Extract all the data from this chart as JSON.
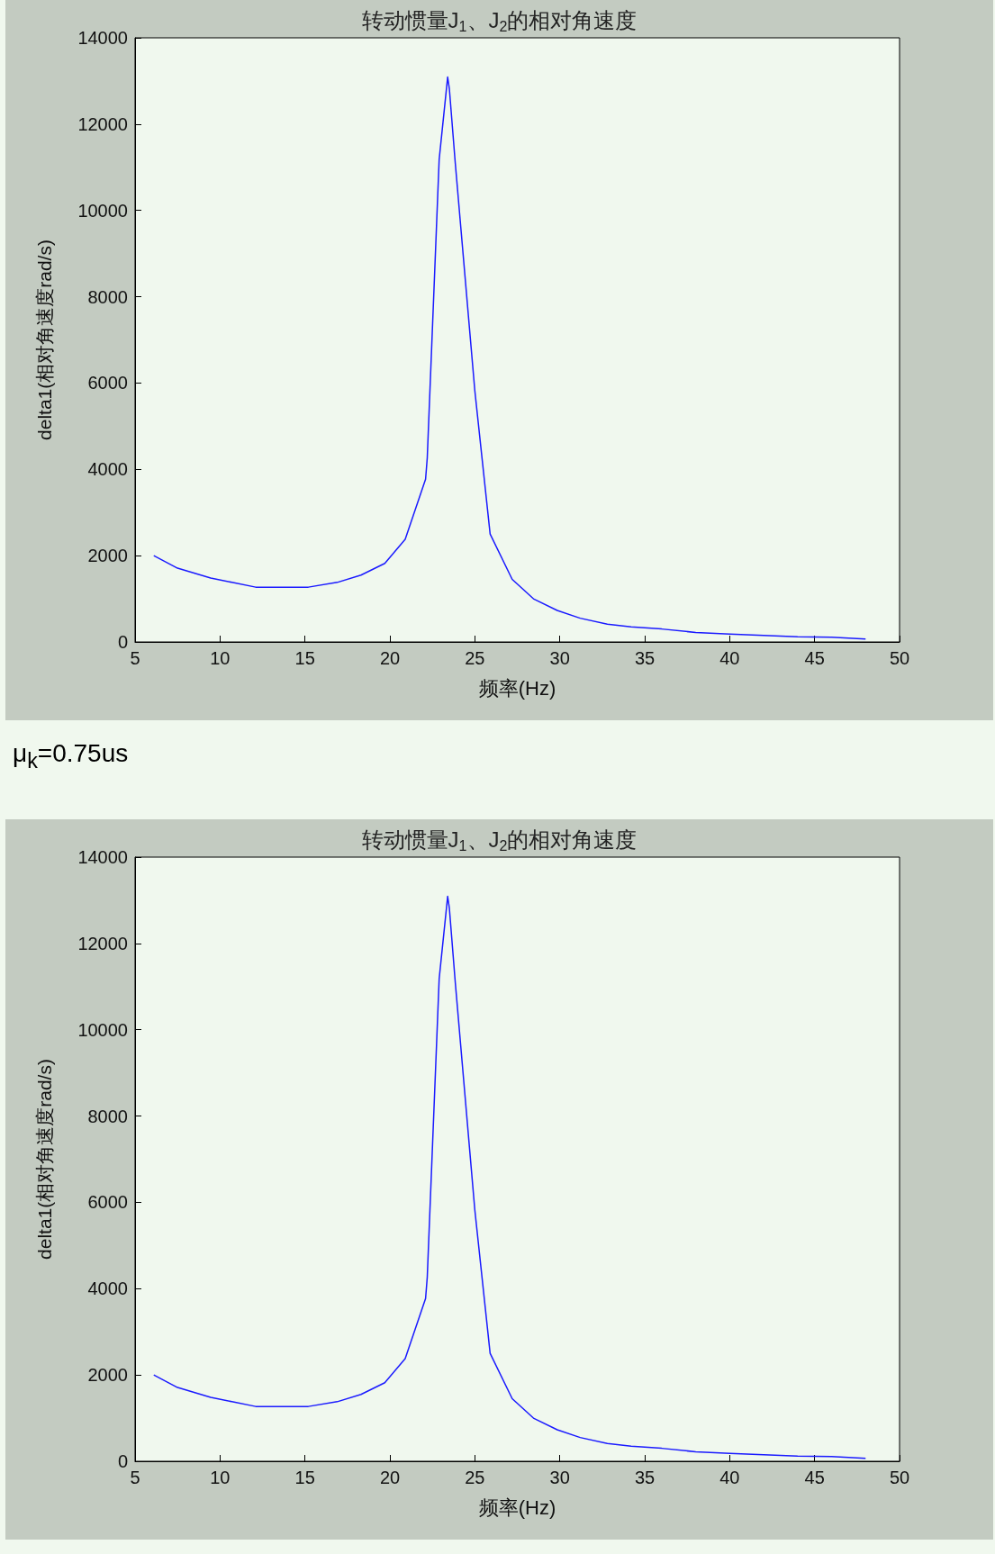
{
  "chart_data": [
    {
      "type": "line",
      "title": "转动惯量J$_{1}$、J$_{2}$的相对角速度",
      "xlabel": "频率(Hz)",
      "ylabel": "delta1(相对角速度rad/s)",
      "x": [
        6.1,
        7.5,
        9.45,
        10.7,
        12.1,
        15.2,
        16.9,
        18.3,
        19.7,
        20.9,
        22.1,
        22.2,
        22.9,
        23.4,
        23.5,
        23.85,
        25.0,
        25.9,
        27.2,
        28.45,
        29.85,
        31.2,
        32.8,
        34.2,
        36,
        38,
        40,
        42,
        44,
        46,
        48
      ],
      "series": [
        {
          "color": "#1a1aff",
          "values": [
            2000,
            1710,
            1480,
            1380,
            1270,
            1270,
            1380,
            1550,
            1820,
            2380,
            3770,
            4270,
            11180,
            13090,
            12820,
            11090,
            5820,
            2500,
            1450,
            1000,
            730,
            550,
            410,
            350,
            300,
            220,
            180,
            150,
            120,
            110,
            70
          ]
        }
      ],
      "xlim": [
        5,
        50
      ],
      "xticks": [
        5,
        10,
        15,
        20,
        25,
        30,
        35,
        40,
        45,
        50
      ],
      "ylim": [
        0,
        14000
      ],
      "yticks": [
        0,
        2000,
        4000,
        6000,
        8000,
        10000,
        12000,
        14000
      ],
      "grid": false,
      "marker": "none",
      "line_style": "solid"
    },
    {
      "type": "line",
      "title": "转动惯量J$_{1}$、J$_{2}$的相对角速度",
      "xlabel": "频率(Hz)",
      "ylabel": "delta1(相对角速度rad/s)",
      "annotations": [
        "μ$_{k}$=0.75us"
      ],
      "x": [
        6.1,
        7.5,
        9.45,
        10.7,
        12.1,
        15.2,
        16.9,
        18.3,
        19.7,
        20.9,
        22.1,
        22.2,
        22.9,
        23.4,
        23.5,
        23.85,
        25.0,
        25.9,
        27.2,
        28.45,
        29.85,
        31.2,
        32.8,
        34.2,
        36,
        38,
        40,
        42,
        44,
        46,
        48
      ],
      "series": [
        {
          "color": "#1a1aff",
          "values": [
            2000,
            1710,
            1480,
            1380,
            1270,
            1270,
            1380,
            1550,
            1820,
            2380,
            3770,
            4270,
            11180,
            13090,
            12820,
            11090,
            5820,
            2500,
            1450,
            1000,
            730,
            550,
            410,
            350,
            300,
            220,
            180,
            150,
            120,
            110,
            70
          ]
        }
      ],
      "xlim": [
        5,
        50
      ],
      "xticks": [
        5,
        10,
        15,
        20,
        25,
        30,
        35,
        40,
        45,
        50
      ],
      "ylim": [
        0,
        14000
      ],
      "yticks": [
        0,
        2000,
        4000,
        6000,
        8000,
        10000,
        12000,
        14000
      ],
      "grid": false,
      "marker": "none",
      "line_style": "solid"
    }
  ]
}
